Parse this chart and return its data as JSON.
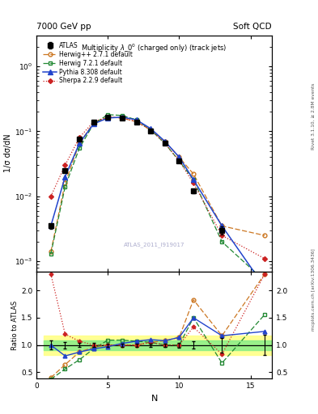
{
  "title_top": "7000 GeV pp",
  "title_right": "Soft QCD",
  "plot_title": "Multiplicity $\\lambda\\_0^0$ (charged only) (track jets)",
  "ylabel_main": "1/σ dσ/dN",
  "ylabel_ratio": "Ratio to ATLAS",
  "xlabel": "N",
  "watermark": "ATLAS_2011_I919017",
  "rivet_text": "Rivet 3.1.10, ≥ 2.8M events",
  "arxiv_text": "mcplots.cern.ch [arXiv:1306.3436]",
  "atlas_x": [
    1,
    2,
    3,
    4,
    5,
    6,
    7,
    8,
    9,
    10,
    11,
    13,
    16
  ],
  "atlas_y": [
    0.0035,
    0.025,
    0.075,
    0.14,
    0.165,
    0.16,
    0.14,
    0.1,
    0.065,
    0.035,
    0.012,
    0.003,
    0.00032
  ],
  "atlas_yerr": [
    0.0003,
    0.0015,
    0.003,
    0.005,
    0.005,
    0.005,
    0.004,
    0.003,
    0.002,
    0.0015,
    0.0008,
    0.0004,
    6e-05
  ],
  "herwig_x": [
    1,
    2,
    3,
    4,
    5,
    6,
    7,
    8,
    9,
    10,
    11,
    13,
    16
  ],
  "herwig_y": [
    0.0014,
    0.016,
    0.065,
    0.135,
    0.165,
    0.16,
    0.14,
    0.105,
    0.07,
    0.04,
    0.022,
    0.0035,
    0.0025
  ],
  "herwig721_x": [
    1,
    2,
    3,
    4,
    5,
    6,
    7,
    8,
    9,
    10,
    11,
    13,
    16
  ],
  "herwig721_y": [
    0.0013,
    0.014,
    0.055,
    0.13,
    0.18,
    0.175,
    0.15,
    0.105,
    0.065,
    0.035,
    0.018,
    0.002,
    0.0005
  ],
  "pythia_x": [
    1,
    2,
    3,
    4,
    5,
    6,
    7,
    8,
    9,
    10,
    11,
    13,
    16
  ],
  "pythia_y": [
    0.0035,
    0.02,
    0.065,
    0.13,
    0.16,
    0.165,
    0.15,
    0.11,
    0.07,
    0.04,
    0.018,
    0.0035,
    0.0004
  ],
  "sherpa_x": [
    1,
    2,
    3,
    4,
    5,
    6,
    7,
    8,
    9,
    10,
    11,
    13,
    16
  ],
  "sherpa_y": [
    0.01,
    0.03,
    0.08,
    0.14,
    0.165,
    0.16,
    0.14,
    0.105,
    0.065,
    0.035,
    0.016,
    0.0025,
    0.0011
  ],
  "ratio_herwig_y": [
    0.4,
    0.64,
    0.87,
    0.96,
    1.0,
    1.0,
    1.0,
    1.05,
    1.08,
    1.14,
    1.83,
    1.17,
    7.8
  ],
  "ratio_herwig721_y": [
    0.37,
    0.56,
    0.73,
    0.93,
    1.09,
    1.09,
    1.07,
    1.05,
    1.0,
    1.0,
    1.5,
    0.67,
    1.56
  ],
  "ratio_pythia_y": [
    1.0,
    0.8,
    0.87,
    0.93,
    0.97,
    1.03,
    1.07,
    1.1,
    1.08,
    1.14,
    1.5,
    1.17,
    1.25
  ],
  "ratio_sherpa_y": [
    2.86,
    1.2,
    1.07,
    1.0,
    1.0,
    1.0,
    1.0,
    1.05,
    1.0,
    1.0,
    1.33,
    0.83,
    3.44
  ],
  "atlas_color": "#000000",
  "herwig_color": "#cc7722",
  "herwig721_color": "#228833",
  "pythia_color": "#2244cc",
  "sherpa_color": "#cc2222",
  "band_yellow": [
    0.82,
    1.18
  ],
  "band_green": [
    0.91,
    1.09
  ],
  "xlim_main": [
    0.5,
    16.5
  ],
  "ylim_main": [
    0.0007,
    3.0
  ],
  "xlim_ratio": [
    0.5,
    16.5
  ],
  "ylim_ratio": [
    0.38,
    2.35
  ],
  "xticks": [
    0,
    5,
    10,
    15
  ],
  "xtick_labels": [
    "0",
    "5",
    "10",
    "15"
  ]
}
